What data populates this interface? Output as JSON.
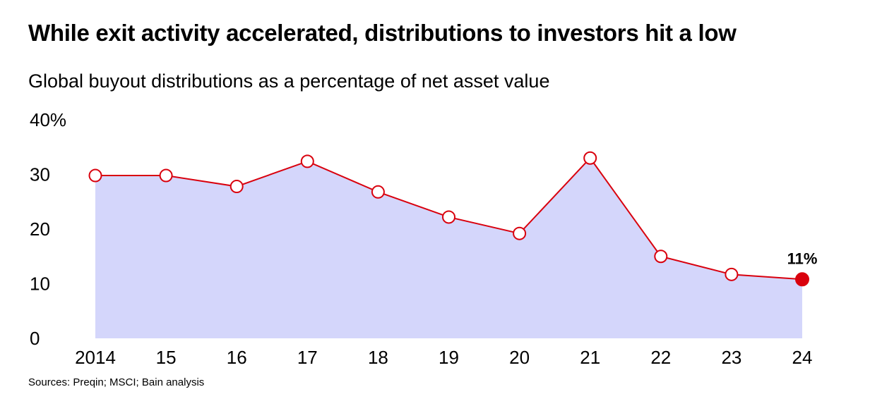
{
  "chart_data": {
    "type": "area",
    "title": "While exit activity accelerated, distributions to investors hit a low",
    "subtitle": "Global buyout distributions as a percentage of net asset value",
    "x": [
      "2014",
      "15",
      "16",
      "17",
      "18",
      "19",
      "20",
      "21",
      "22",
      "23",
      "24"
    ],
    "series": [
      {
        "name": "Distributions as % of NAV",
        "values": [
          29.8,
          29.8,
          27.8,
          32.4,
          26.8,
          22.2,
          19.2,
          33.0,
          15.0,
          11.7,
          10.8
        ]
      }
    ],
    "y_ticks": [
      "0",
      "10",
      "20",
      "30",
      "40%"
    ],
    "ylim": [
      0,
      40
    ],
    "highlight": {
      "index": 10,
      "label": "11%"
    },
    "source": "Sources: Preqin; MSCI; Bain analysis",
    "colors": {
      "line": "#d9000d",
      "fill": "#d4d6fb",
      "marker_fill": "#ffffff",
      "highlight_fill": "#d9000d"
    },
    "grid": false,
    "legend": "none"
  }
}
